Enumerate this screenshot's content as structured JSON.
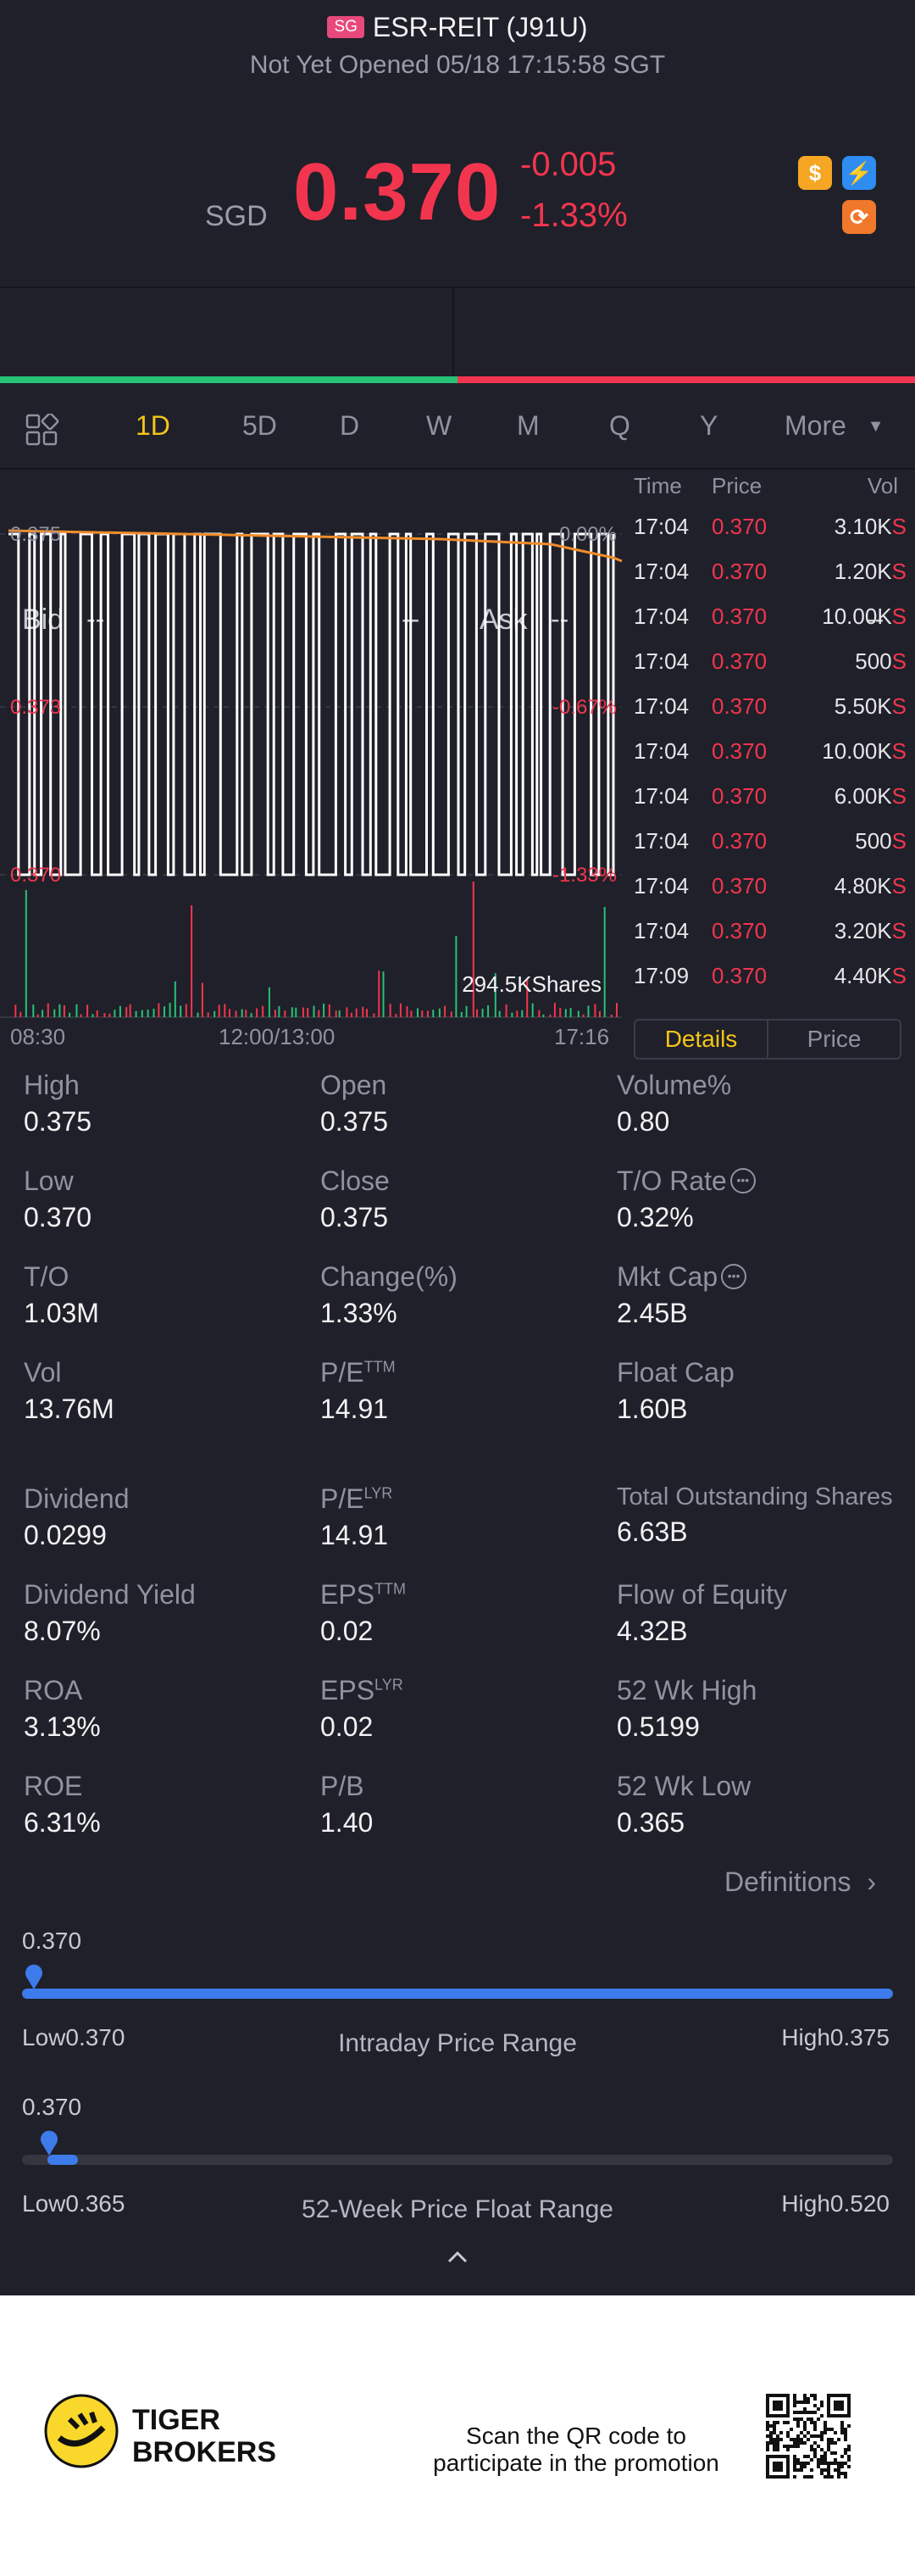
{
  "header": {
    "market_badge": "SG",
    "title": "ESR-REIT (J91U)",
    "status": "Not Yet Opened 05/18 17:15:58 SGT",
    "currency": "SGD",
    "price": "0.370",
    "change_abs": "-0.005",
    "change_pct": "-1.33%",
    "colors": {
      "down": "#f2354e",
      "up": "#27c276",
      "accent": "#f5c518"
    }
  },
  "quote": {
    "bid_label": "Bid",
    "bid_value": "--",
    "bid_size": "--",
    "ask_label": "Ask",
    "ask_value": "--",
    "ask_size": "--"
  },
  "tabs": {
    "layout_icon": "grid-icon",
    "items": [
      "1D",
      "5D",
      "D",
      "W",
      "M",
      "Q",
      "Y",
      "More"
    ],
    "active": "1D"
  },
  "chart_data": {
    "type": "line",
    "y_ticks": [
      "0.375",
      "0.373",
      "0.370"
    ],
    "y_pct_ticks": [
      "0.00%",
      "-0.67%",
      "-1.33%"
    ],
    "x_ticks": [
      "08:30",
      "12:00/13:00",
      "17:16"
    ],
    "ylim": [
      0.37,
      0.375
    ],
    "avg_line_color": "#f08c2b",
    "price_line_color": "#ffffff",
    "volume_label": "294.5KShares"
  },
  "trades": {
    "headers": {
      "time": "Time",
      "price": "Price",
      "vol": "Vol"
    },
    "rows": [
      {
        "time": "17:04",
        "price": "0.370",
        "vol": "3.10K",
        "side": "S"
      },
      {
        "time": "17:04",
        "price": "0.370",
        "vol": "1.20K",
        "side": "S"
      },
      {
        "time": "17:04",
        "price": "0.370",
        "vol": "10.00K",
        "side": "S"
      },
      {
        "time": "17:04",
        "price": "0.370",
        "vol": "500",
        "side": "S"
      },
      {
        "time": "17:04",
        "price": "0.370",
        "vol": "5.50K",
        "side": "S"
      },
      {
        "time": "17:04",
        "price": "0.370",
        "vol": "10.00K",
        "side": "S"
      },
      {
        "time": "17:04",
        "price": "0.370",
        "vol": "6.00K",
        "side": "S"
      },
      {
        "time": "17:04",
        "price": "0.370",
        "vol": "500",
        "side": "S"
      },
      {
        "time": "17:04",
        "price": "0.370",
        "vol": "4.80K",
        "side": "S"
      },
      {
        "time": "17:04",
        "price": "0.370",
        "vol": "3.20K",
        "side": "S"
      },
      {
        "time": "17:09",
        "price": "0.370",
        "vol": "4.40K",
        "side": "S"
      }
    ],
    "segment": {
      "details": "Details",
      "price": "Price",
      "active": "Details"
    }
  },
  "stats": [
    {
      "label": "High",
      "value": "0.375"
    },
    {
      "label": "Open",
      "value": "0.375"
    },
    {
      "label": "Volume%",
      "value": "0.80"
    },
    {
      "label": "Low",
      "value": "0.370"
    },
    {
      "label": "Close",
      "value": "0.375"
    },
    {
      "label": "T/O Rate",
      "value": "0.32%",
      "info": true
    },
    {
      "label": "T/O",
      "value": "1.03M"
    },
    {
      "label": "Change(%)",
      "value": "1.33%"
    },
    {
      "label": "Mkt Cap",
      "value": "2.45B",
      "info": true
    },
    {
      "label": "Vol",
      "value": "13.76M"
    },
    {
      "label": "P/E",
      "sup": "TTM",
      "value": "14.91"
    },
    {
      "label": "Float Cap",
      "value": "1.60B"
    },
    {
      "label": "Dividend",
      "value": "0.0299"
    },
    {
      "label": "P/E",
      "sup": "LYR",
      "value": "14.91"
    },
    {
      "label": "Total Outstanding Shares",
      "value": "6.63B"
    },
    {
      "label": "Dividend Yield",
      "value": "8.07%"
    },
    {
      "label": "EPS",
      "sup": "TTM",
      "value": "0.02"
    },
    {
      "label": "Flow of Equity",
      "value": "4.32B"
    },
    {
      "label": "ROA",
      "value": "3.13%"
    },
    {
      "label": "EPS",
      "sup": "LYR",
      "value": "0.02"
    },
    {
      "label": "52 Wk High",
      "value": "0.5199"
    },
    {
      "label": "ROE",
      "value": "6.31%"
    },
    {
      "label": "P/B",
      "value": "1.40"
    },
    {
      "label": "52 Wk Low",
      "value": "0.365"
    }
  ],
  "definitions_label": "Definitions",
  "ranges": [
    {
      "current": "0.370",
      "low_label": "Low",
      "low": "0.370",
      "high_label": "High",
      "high": "0.375",
      "title": "Intraday Price Range",
      "position": 0.0
    },
    {
      "current": "0.370",
      "low_label": "Low",
      "low": "0.365",
      "high_label": "High",
      "high": "0.520",
      "title": "52-Week Price Float Range",
      "position": 0.03
    }
  ],
  "footer": {
    "brand_line1": "TIGER",
    "brand_line2": "BROKERS",
    "promo_line1": "Scan the QR code to",
    "promo_line2": "participate in the promotion"
  }
}
